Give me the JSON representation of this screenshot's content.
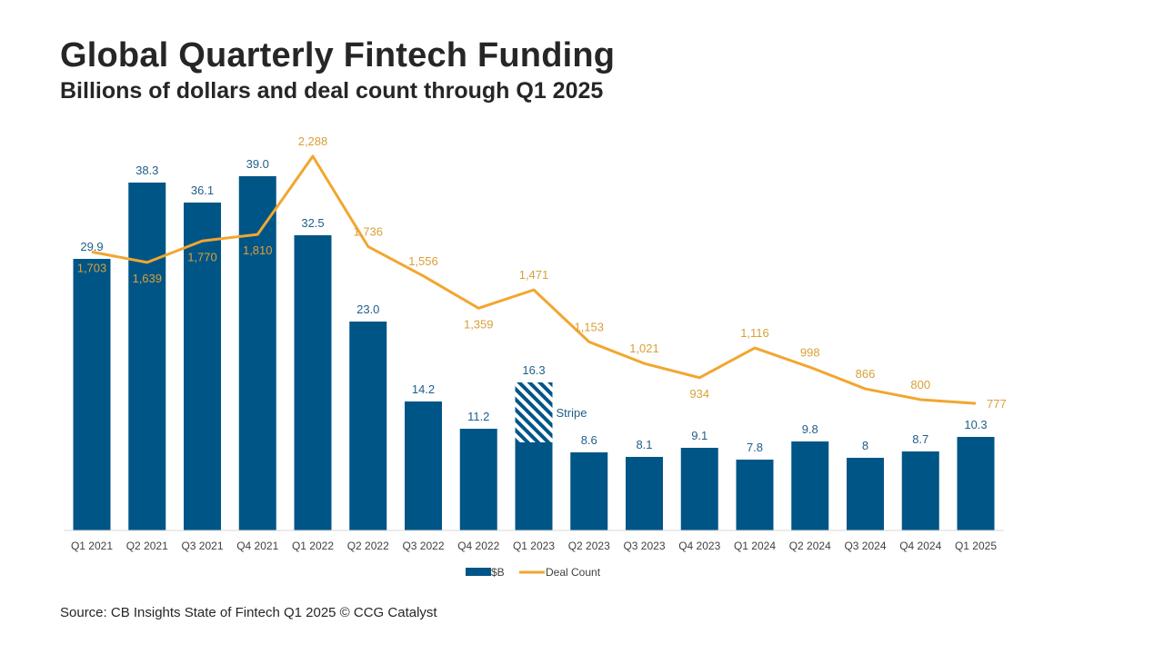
{
  "header": {
    "title": "Global Quarterly Fintech Funding",
    "subtitle": "Billions of dollars and deal count through Q1 2025"
  },
  "footer": {
    "source": "Source: CB Insights State of Fintech Q1 2025 © CCG Catalyst"
  },
  "colors": {
    "bar": "#005587",
    "line": "#F2A62F",
    "bar_label": "#1F5F8A",
    "line_label": "#D9A038",
    "axis_text": "#404040"
  },
  "chart_data": {
    "type": "bar",
    "categories": [
      "Q1 2021",
      "Q2 2021",
      "Q3 2021",
      "Q4 2021",
      "Q1 2022",
      "Q2 2022",
      "Q3 2022",
      "Q4 2022",
      "Q1 2023",
      "Q2 2023",
      "Q3 2023",
      "Q4 2023",
      "Q1 2024",
      "Q2 2024",
      "Q3 2024",
      "Q4 2024",
      "Q1 2025"
    ],
    "series": [
      {
        "name": "$B",
        "type": "bar",
        "values": [
          29.9,
          38.3,
          36.1,
          39.0,
          32.5,
          23.0,
          14.2,
          11.2,
          16.3,
          8.6,
          8.1,
          9.1,
          7.8,
          9.8,
          8,
          8.7,
          10.3
        ],
        "labels": [
          "29.9",
          "38.3",
          "36.1",
          "39.0",
          "32.5",
          "23.0",
          "14.2",
          "11.2",
          "16.3",
          "8.6",
          "8.1",
          "9.1",
          "7.8",
          "9.8",
          "8",
          "8.7",
          "10.3"
        ]
      },
      {
        "name": "Deal Count",
        "type": "line",
        "values": [
          1703,
          1639,
          1770,
          1810,
          2288,
          1736,
          1556,
          1359,
          1471,
          1153,
          1021,
          934,
          1116,
          998,
          866,
          800,
          777
        ],
        "labels": [
          "1,703",
          "1,639",
          "1,770",
          "1,810",
          "2,288",
          "1,736",
          "1,556",
          "1,359",
          "1,471",
          "1,153",
          "1,021",
          "934",
          "1,116",
          "998",
          "866",
          "800",
          "777"
        ]
      }
    ],
    "annotations": [
      {
        "category": "Q1 2023",
        "text": "Stripe",
        "highlight_from": 9.7,
        "highlight_to": 16.3,
        "pattern": "diagonal-hatch"
      }
    ],
    "xlabel": "",
    "ylabel": "",
    "ylim_bar": [
      0,
      41
    ],
    "ylim_line": [
      0,
      2700
    ],
    "grid": false,
    "legend": {
      "position": "bottom-center",
      "items": [
        "$B",
        "Deal Count"
      ]
    }
  }
}
